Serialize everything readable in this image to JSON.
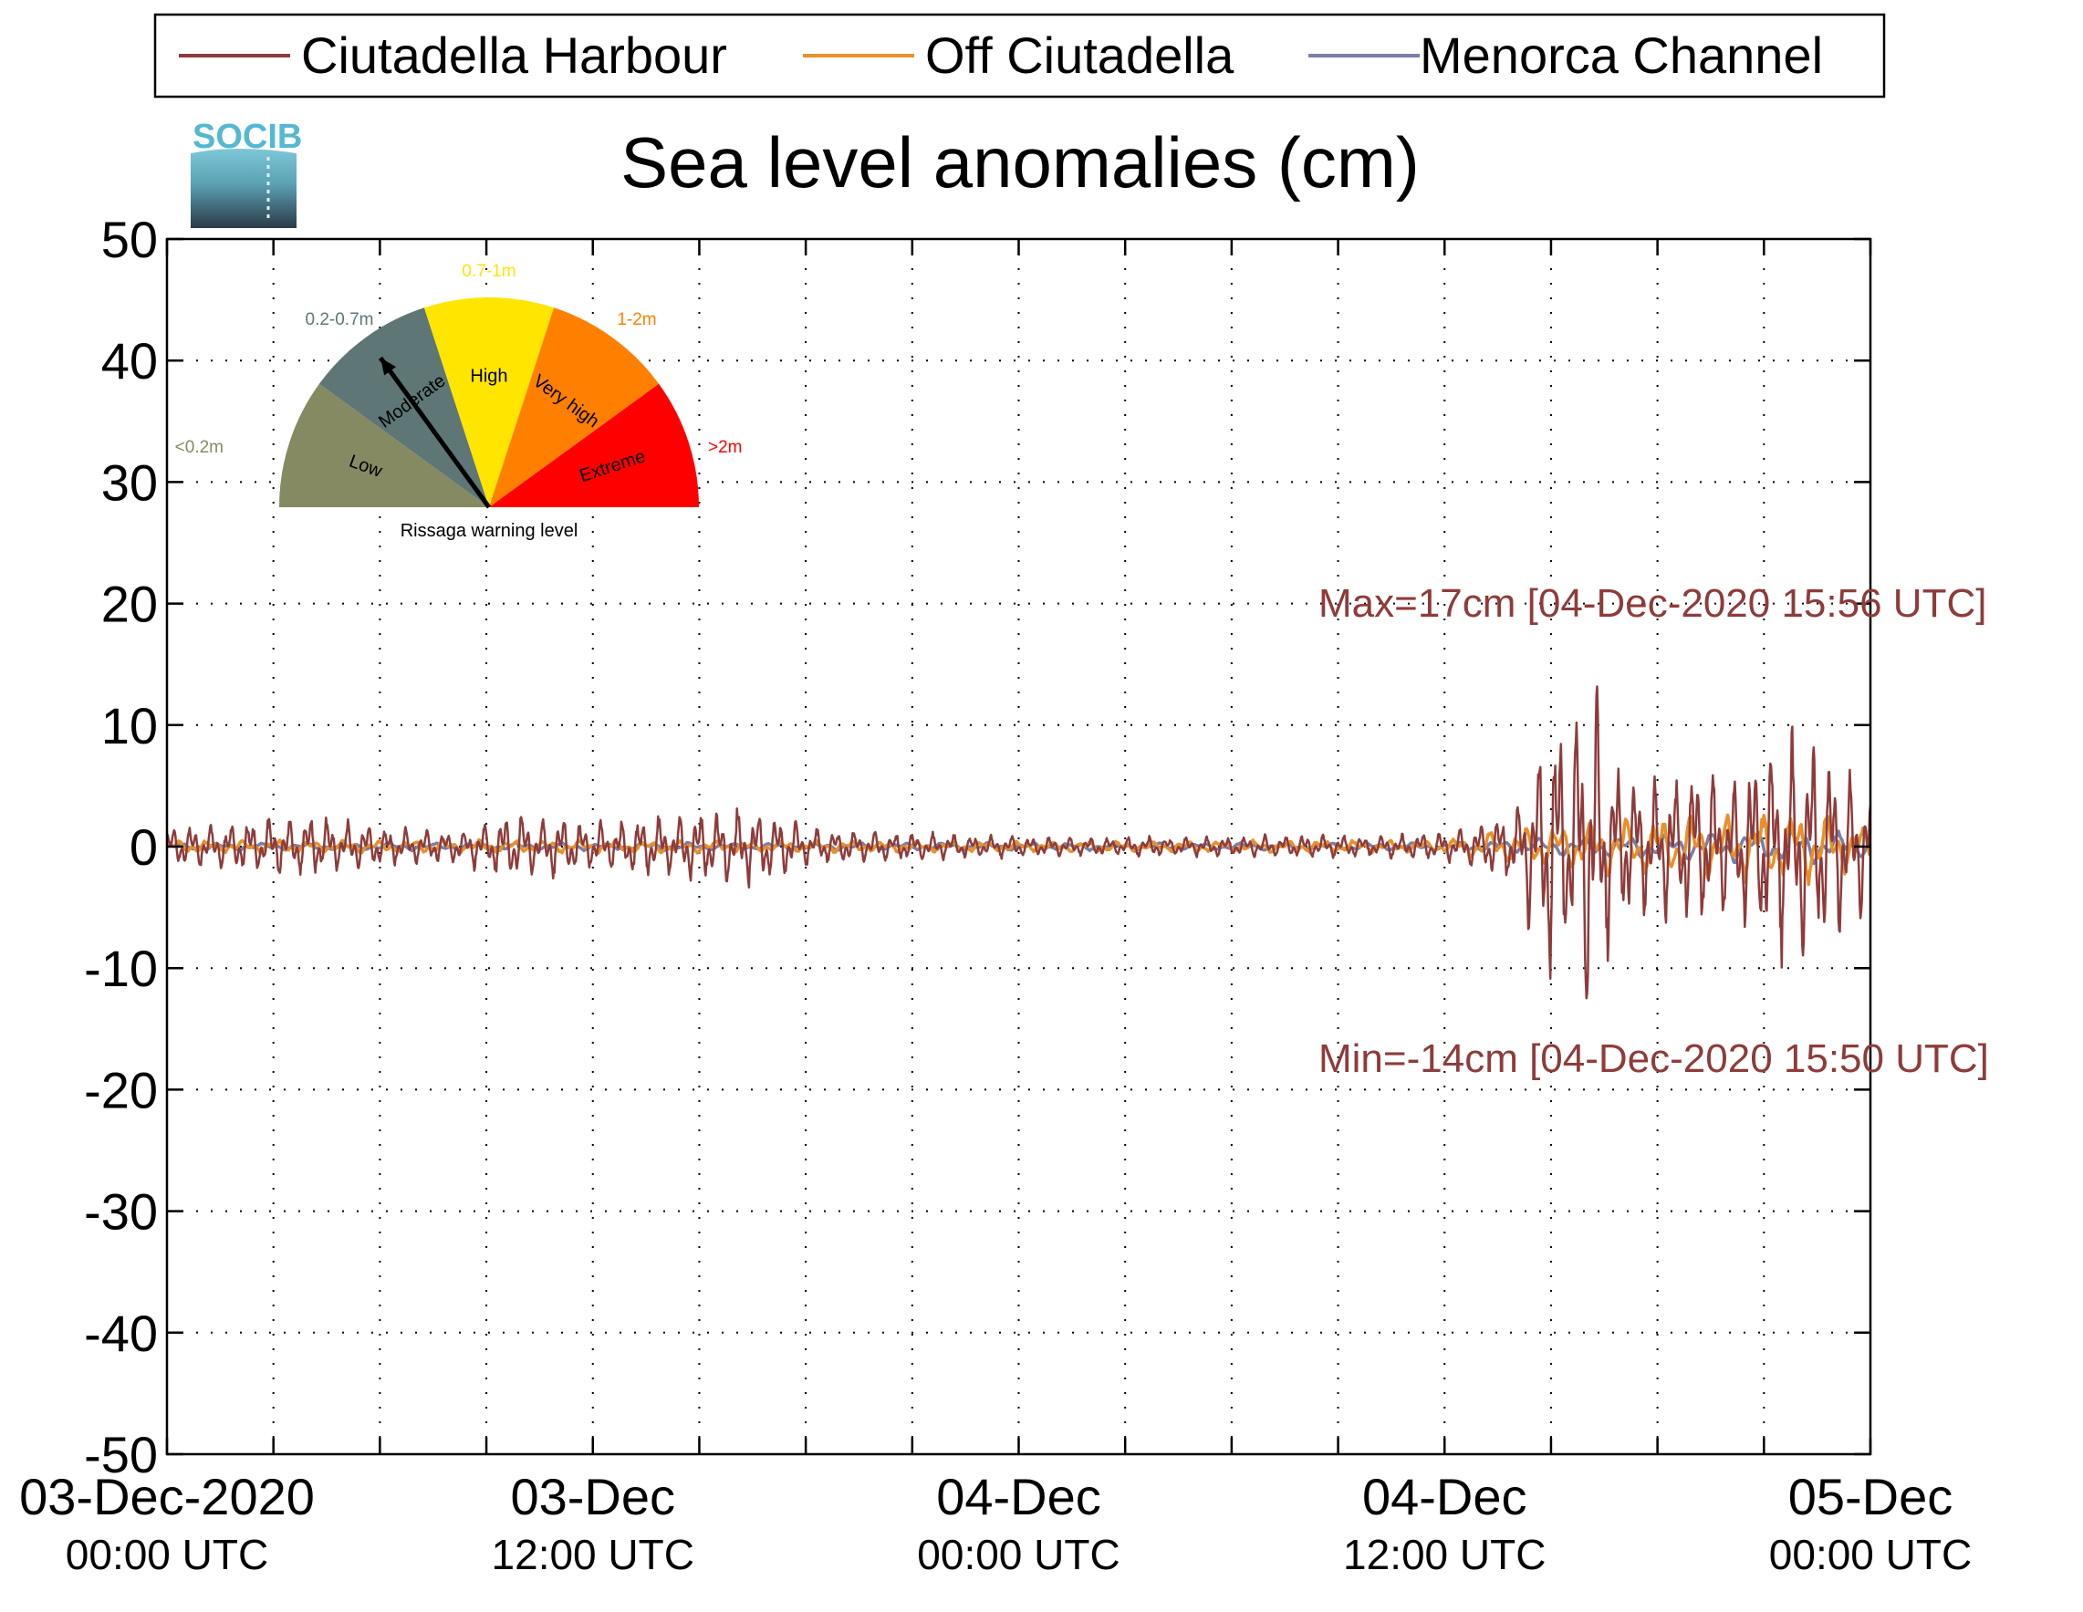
{
  "chart_data": {
    "type": "line",
    "title": "Sea level anomalies (cm)",
    "logo_text": "SOCIB",
    "ylim": [
      -50,
      50
    ],
    "yticks": [
      50,
      40,
      30,
      20,
      10,
      0,
      -10,
      -20,
      -30,
      -40,
      -50
    ],
    "y_tick_labels": [
      "50",
      "40",
      "30",
      "20",
      "10",
      "0",
      "-10",
      "-20",
      "-30",
      "-40",
      "-50"
    ],
    "x_range_hours": [
      0,
      48
    ],
    "grid": true,
    "legend_position": "top",
    "x_tick_labels": [
      {
        "hour": 0,
        "line1": "03-Dec-2020",
        "line2": "00:00 UTC"
      },
      {
        "hour": 12,
        "line1": "03-Dec",
        "line2": "12:00 UTC"
      },
      {
        "hour": 24,
        "line1": "04-Dec",
        "line2": "00:00 UTC"
      },
      {
        "hour": 36,
        "line1": "04-Dec",
        "line2": "12:00 UTC"
      },
      {
        "hour": 48,
        "line1": "05-Dec",
        "line2": "00:00 UTC"
      }
    ],
    "series": [
      {
        "name": "Ciutadella Harbour",
        "color": "#8f3b3b",
        "envelope": [
          {
            "hour": 0,
            "amp": 1.5
          },
          {
            "hour": 2,
            "amp": 2.0
          },
          {
            "hour": 4,
            "amp": 2.5
          },
          {
            "hour": 6,
            "amp": 1.5
          },
          {
            "hour": 8,
            "amp": 1.2
          },
          {
            "hour": 10,
            "amp": 2.8
          },
          {
            "hour": 12,
            "amp": 1.8
          },
          {
            "hour": 14,
            "amp": 2.5
          },
          {
            "hour": 15.5,
            "amp": 2.8
          },
          {
            "hour": 16,
            "amp": 3.2
          },
          {
            "hour": 17,
            "amp": 2.8
          },
          {
            "hour": 18,
            "amp": 1.5
          },
          {
            "hour": 20,
            "amp": 1.2
          },
          {
            "hour": 22,
            "amp": 1.0
          },
          {
            "hour": 24,
            "amp": 0.8
          },
          {
            "hour": 26,
            "amp": 0.7
          },
          {
            "hour": 28,
            "amp": 0.8
          },
          {
            "hour": 30,
            "amp": 0.8
          },
          {
            "hour": 32,
            "amp": 0.9
          },
          {
            "hour": 34,
            "amp": 0.8
          },
          {
            "hour": 36,
            "amp": 1.2
          },
          {
            "hour": 37,
            "amp": 1.8
          },
          {
            "hour": 38,
            "amp": 3.0
          },
          {
            "hour": 38.5,
            "amp": 7.0
          },
          {
            "hour": 39,
            "amp": 11.0
          },
          {
            "hour": 39.5,
            "amp": 9.0
          },
          {
            "hour": 39.93,
            "amp": 15.5
          },
          {
            "hour": 40.5,
            "amp": 10.0
          },
          {
            "hour": 41,
            "amp": 6.0
          },
          {
            "hour": 42,
            "amp": 5.0
          },
          {
            "hour": 43,
            "amp": 7.0
          },
          {
            "hour": 44,
            "amp": 5.5
          },
          {
            "hour": 45,
            "amp": 8.0
          },
          {
            "hour": 46,
            "amp": 9.0
          },
          {
            "hour": 47,
            "amp": 7.0
          },
          {
            "hour": 48,
            "amp": 5.0
          }
        ]
      },
      {
        "name": "Off Ciutadella",
        "color": "#e8902a",
        "envelope": [
          {
            "hour": 0,
            "amp": 0.5
          },
          {
            "hour": 12,
            "amp": 0.5
          },
          {
            "hour": 24,
            "amp": 0.4
          },
          {
            "hour": 36,
            "amp": 0.5
          },
          {
            "hour": 38,
            "amp": 1.5
          },
          {
            "hour": 40,
            "amp": 2.0
          },
          {
            "hour": 43,
            "amp": 2.5
          },
          {
            "hour": 46,
            "amp": 3.0
          },
          {
            "hour": 48,
            "amp": 1.5
          }
        ]
      },
      {
        "name": "Menorca Channel",
        "color": "#7a7fa8",
        "envelope": [
          {
            "hour": 0,
            "amp": 0.3
          },
          {
            "hour": 24,
            "amp": 0.3
          },
          {
            "hour": 36,
            "amp": 0.3
          },
          {
            "hour": 40,
            "amp": 0.8
          },
          {
            "hour": 44,
            "amp": 1.2
          },
          {
            "hour": 46,
            "amp": 1.5
          },
          {
            "hour": 48,
            "amp": 0.8
          }
        ]
      }
    ],
    "annotations": [
      {
        "text": "Max=17cm [04-Dec-2020 15:56 UTC]",
        "hour": 39.93,
        "value": 17,
        "color": "#8f3b3b"
      },
      {
        "text": "Min=-14cm [04-Dec-2020 15:50 UTC]",
        "hour": 39.83,
        "value": -14,
        "color": "#8f3b3b"
      }
    ],
    "gauge": {
      "caption": "Rissaga warning level",
      "indicator_level": "Moderate",
      "segments": [
        {
          "name": "Low",
          "range": "<0.2m",
          "color": "#858a63"
        },
        {
          "name": "Moderate",
          "range": "0.2-0.7m",
          "color": "#5e7676"
        },
        {
          "name": "High",
          "range": "0.7-1m",
          "color": "#ffe500"
        },
        {
          "name": "Very high",
          "range": "1-2m",
          "color": "#ff8000"
        },
        {
          "name": "Extreme",
          "range": ">2m",
          "color": "#ff0000"
        }
      ]
    }
  }
}
